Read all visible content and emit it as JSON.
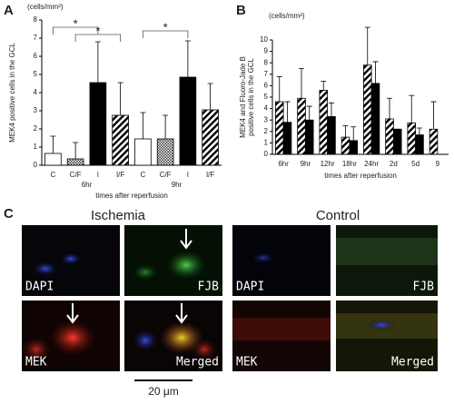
{
  "panel_labels": [
    "A",
    "B",
    "C"
  ],
  "chart_data": [
    {
      "type": "bar",
      "unit": "(cells/mm²)",
      "y_label": "MEK4 positive cells in the GCL",
      "x_label": "times after reperfusion",
      "categories": [
        "C",
        "C/F",
        "I",
        "I/F",
        "C",
        "C/F",
        "I",
        "I/F"
      ],
      "groups": [
        "6hr",
        "9hr"
      ],
      "values": [
        0.65,
        0.35,
        4.55,
        2.75,
        1.45,
        1.45,
        4.85,
        3.05
      ],
      "errors": [
        0.95,
        0.9,
        2.25,
        1.8,
        1.45,
        1.3,
        2.0,
        1.45
      ],
      "patterns": [
        "white",
        "dots",
        "black",
        "hatch",
        "white",
        "dots",
        "black",
        "hatch"
      ],
      "ylim": [
        0,
        8
      ],
      "yticks": [
        0,
        1,
        2,
        3,
        4,
        5,
        6,
        7,
        8
      ],
      "annotations": [
        "*",
        "*",
        "*"
      ]
    },
    {
      "type": "bar",
      "unit": "(cells/mm²)",
      "y_label": [
        "MEK4 and Fluoro-Jade B",
        "positive cells in the GCL"
      ],
      "x_label": "times after reperfusion",
      "categories": [
        "6hr",
        "9hr",
        "12hr",
        "18hr",
        "24hr",
        "2d",
        "5d",
        "9"
      ],
      "series": [
        {
          "pattern": "hatch",
          "values": [
            4.6,
            4.9,
            5.6,
            1.5,
            7.8,
            3.1,
            2.75,
            2.2
          ],
          "errors": [
            2.2,
            2.6,
            0.8,
            1.0,
            3.3,
            1.8,
            2.4,
            2.4
          ]
        },
        {
          "pattern": "black",
          "values": [
            2.8,
            3.0,
            3.3,
            1.2,
            6.2,
            2.2,
            1.7,
            null
          ],
          "errors": [
            1.8,
            1.2,
            1.2,
            1.2,
            1.9,
            0,
            0.6,
            null
          ]
        }
      ],
      "ylim": [
        0,
        10
      ],
      "yticks": [
        0,
        1,
        2,
        3,
        4,
        5,
        6,
        7,
        8,
        9,
        10
      ]
    }
  ],
  "micrographs": {
    "conditions": [
      "Ischemia",
      "Control"
    ],
    "channels": [
      "DAPI",
      "FJB",
      "MEK",
      "Merged"
    ],
    "scale_bar": "20 μm"
  }
}
